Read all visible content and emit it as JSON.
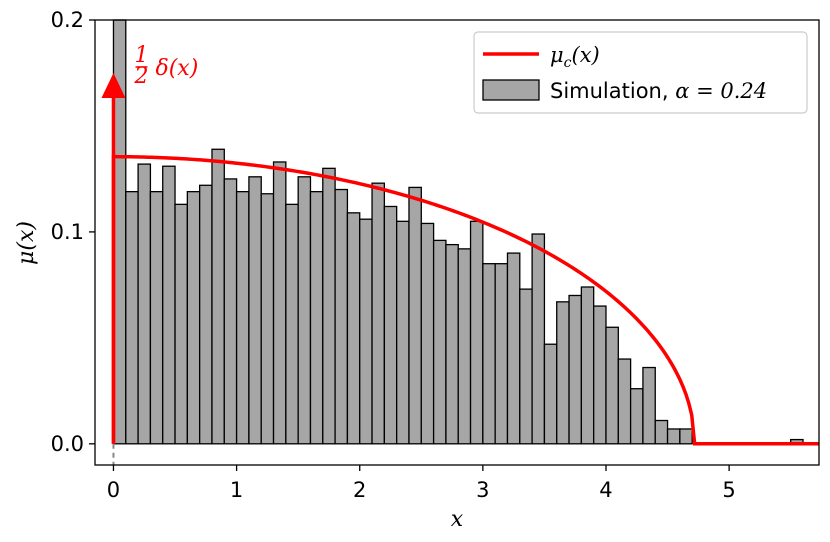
{
  "chart_data": {
    "type": "bar",
    "xlabel": "x",
    "ylabel": "μ(x)",
    "xlim": [
      -0.15,
      5.73
    ],
    "ylim": [
      -0.01,
      0.2
    ],
    "x_ticks": [
      0,
      1,
      2,
      3,
      4,
      5
    ],
    "y_ticks": [
      0.0,
      0.1,
      0.2
    ],
    "x_tick_labels": [
      "0",
      "1",
      "2",
      "3",
      "4",
      "5"
    ],
    "y_tick_labels": [
      "0.0",
      "0.1",
      "0.2"
    ],
    "grid": false,
    "legend_position": "top-right",
    "histogram": {
      "name": "Simulation, α = 0.24",
      "legend_text": "Simulation, ",
      "legend_math": "α = 0.24",
      "color": "#a6a6a6",
      "edge_color": "#000000",
      "bin_width": 0.1,
      "bin_start": 0.0,
      "values": [
        0.21,
        0.119,
        0.132,
        0.119,
        0.131,
        0.113,
        0.119,
        0.122,
        0.139,
        0.125,
        0.119,
        0.126,
        0.118,
        0.133,
        0.113,
        0.126,
        0.119,
        0.13,
        0.12,
        0.109,
        0.106,
        0.123,
        0.112,
        0.105,
        0.121,
        0.104,
        0.096,
        0.094,
        0.092,
        0.105,
        0.085,
        0.085,
        0.09,
        0.073,
        0.099,
        0.047,
        0.067,
        0.07,
        0.074,
        0.065,
        0.055,
        0.04,
        0.026,
        0.036,
        0.011,
        0.007,
        0.007,
        0.0,
        0.0,
        0.0,
        0.0,
        0.0,
        0.0,
        0.0,
        0.0,
        0.002
      ]
    },
    "curve": {
      "name": "μc(x)",
      "legend_main": "μ",
      "legend_sub": "c",
      "legend_tail": "(x)",
      "color": "#ff0000",
      "peak": 0.1355,
      "support_end": 4.72,
      "x_max": 5.73
    },
    "delta_annotation": {
      "frac_num": "1",
      "frac_den": "2",
      "text": "δ(x)",
      "x": 0.0,
      "arrow_top": 0.175,
      "color": "#ff0000"
    }
  }
}
